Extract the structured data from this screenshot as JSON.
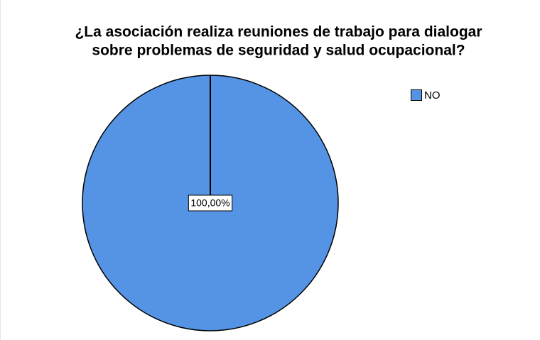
{
  "chart_data": {
    "type": "pie",
    "title": [
      "¿La asociación realiza reuniones de trabajo para dialogar",
      "sobre problemas de seguridad y salud ocupacional?"
    ],
    "categories": [
      "NO"
    ],
    "values": [
      100
    ],
    "value_labels": [
      "100,00%"
    ],
    "colors": [
      "#5593e4"
    ],
    "legend": "top-right"
  }
}
